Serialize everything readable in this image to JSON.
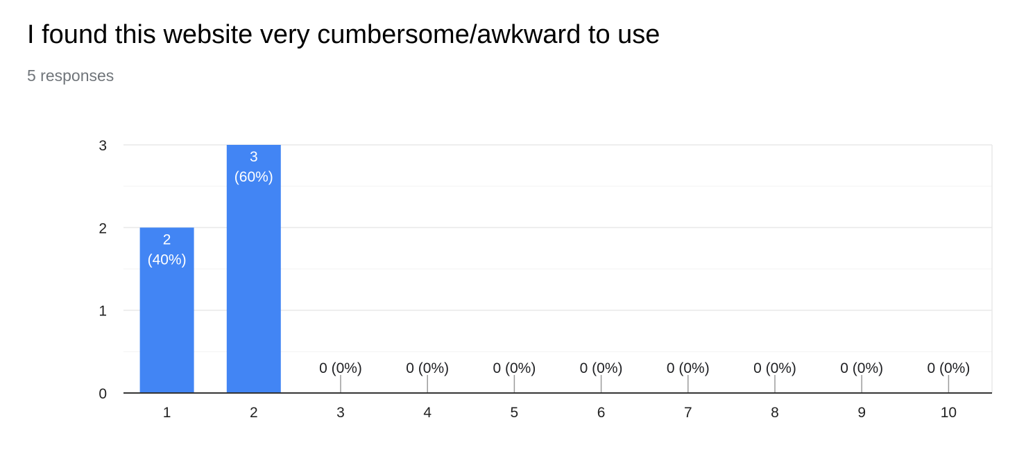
{
  "question": {
    "title": "I found this website very cumbersome/awkward to use",
    "responses": "5 responses"
  },
  "colors": {
    "bar": "#4285f4",
    "bar_label_inside": "#ffffff",
    "label_outside": "#202124",
    "grid": "#e8e8e8",
    "grid_minor": "#f3f3f3",
    "axis": "#333333",
    "tick_text": "#222222"
  },
  "chart_data": {
    "type": "bar",
    "categories": [
      "1",
      "2",
      "3",
      "4",
      "5",
      "6",
      "7",
      "8",
      "9",
      "10"
    ],
    "values": [
      2,
      3,
      0,
      0,
      0,
      0,
      0,
      0,
      0,
      0
    ],
    "data_labels": [
      [
        "2",
        "(40%)"
      ],
      [
        "3",
        "(60%)"
      ],
      [
        "0 (0%)"
      ],
      [
        "0 (0%)"
      ],
      [
        "0 (0%)"
      ],
      [
        "0 (0%)"
      ],
      [
        "0 (0%)"
      ],
      [
        "0 (0%)"
      ],
      [
        "0 (0%)"
      ],
      [
        "0 (0%)"
      ]
    ],
    "y_ticks": [
      "0",
      "1",
      "2",
      "3"
    ],
    "ylim": [
      0,
      3
    ],
    "grid": true,
    "legend": "none"
  }
}
